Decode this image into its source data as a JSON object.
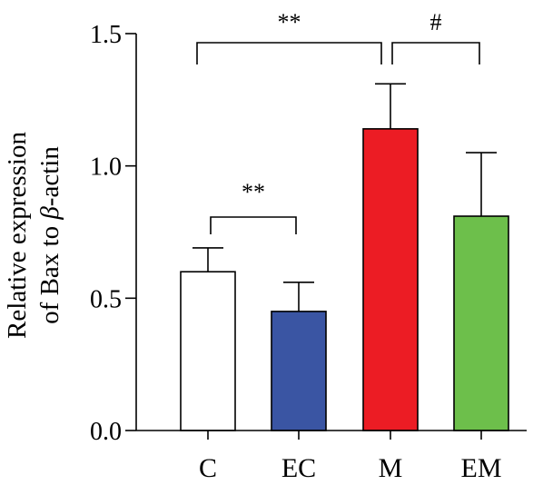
{
  "chart_data": {
    "type": "bar",
    "title": "",
    "xlabel": "",
    "ylabel_lines": [
      "Relative expression",
      "of Bax to β-actin"
    ],
    "ylim": [
      0,
      1.5
    ],
    "yticks": [
      0.0,
      0.5,
      1.0,
      1.5
    ],
    "ytick_labels": [
      "0.0",
      "0.5",
      "1.0",
      "1.5"
    ],
    "categories": [
      "C",
      "EC",
      "M",
      "EM"
    ],
    "values": [
      0.6,
      0.45,
      1.14,
      0.81
    ],
    "errors": [
      0.09,
      0.11,
      0.17,
      0.24
    ],
    "colors": [
      "#ffffff",
      "#3a55a3",
      "#ec1c24",
      "#6dbf4b"
    ],
    "significance": [
      {
        "from": "C",
        "to": "EC",
        "label": "**"
      },
      {
        "from": "C",
        "to": "M",
        "label": "**"
      },
      {
        "from": "M",
        "to": "EM",
        "label": "#"
      }
    ],
    "grid": false,
    "legend": "none"
  }
}
